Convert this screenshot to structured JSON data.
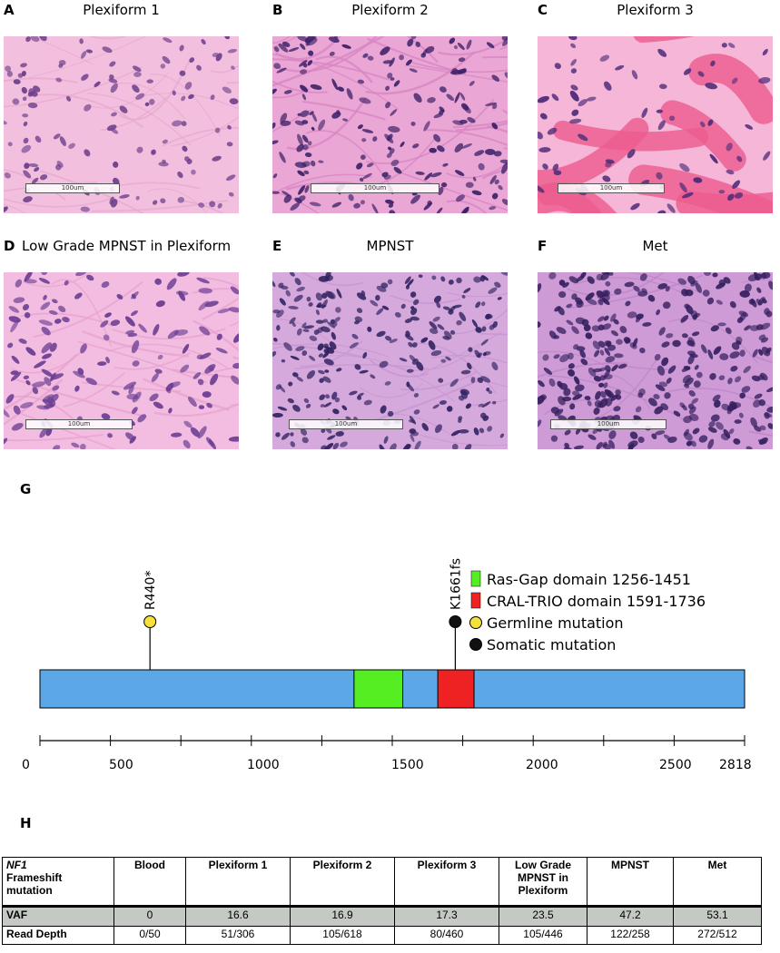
{
  "panels": [
    {
      "letter": "A",
      "title": "Plexiform 1",
      "scale": "100um",
      "style": "plex1"
    },
    {
      "letter": "B",
      "title": "Plexiform 2",
      "scale": "100um",
      "style": "plex2"
    },
    {
      "letter": "C",
      "title": "Plexiform 3",
      "scale": "100um",
      "style": "plex3"
    },
    {
      "letter": "D",
      "title": "Low Grade MPNST in Plexiform",
      "scale": "100um",
      "style": "lowgrade"
    },
    {
      "letter": "E",
      "title": "MPNST",
      "scale": "100um",
      "style": "mpnst"
    },
    {
      "letter": "F",
      "title": "Met",
      "scale": "100um",
      "style": "met"
    }
  ],
  "diagram": {
    "letter": "G",
    "protein_length": 2818,
    "axis_ticks": [
      0,
      500,
      1000,
      1500,
      2000,
      2500,
      2818
    ],
    "domains": [
      {
        "name": "Ras-Gap domain",
        "start": 1256,
        "end": 1451,
        "color": "#55ee22",
        "legend": "Ras-Gap domain 1256-1451"
      },
      {
        "name": "CRAL-TRIO domain",
        "start": 1591,
        "end": 1736,
        "color": "#ee2222",
        "legend": "CRAL-TRIO domain 1591-1736"
      }
    ],
    "mutations": [
      {
        "label": "R440*",
        "position": 440,
        "type": "germline"
      },
      {
        "label": "K1661fs",
        "position": 1661,
        "type": "somatic"
      }
    ],
    "legend_germline": "Germline mutation",
    "legend_somatic": "Somatic mutation",
    "colors": {
      "protein": "#5ba7e8",
      "germline": "#f5e13a",
      "somatic": "#111111"
    }
  },
  "table": {
    "letter": "H",
    "header_gene": "NF1",
    "header_rest": "Frameshift mutation",
    "columns": [
      "Blood",
      "Plexiform 1",
      "Plexiform 2",
      "Plexiform 3",
      "Low Grade MPNST in Plexiform",
      "MPNST",
      "Met"
    ],
    "rows": [
      {
        "label": "VAF",
        "values": [
          "0",
          "16.6",
          "16.9",
          "17.3",
          "23.5",
          "47.2",
          "53.1"
        ]
      },
      {
        "label": "Read Depth",
        "values": [
          "0/50",
          "51/306",
          "105/618",
          "80/460",
          "105/446",
          "122/258",
          "272/512"
        ]
      }
    ]
  }
}
